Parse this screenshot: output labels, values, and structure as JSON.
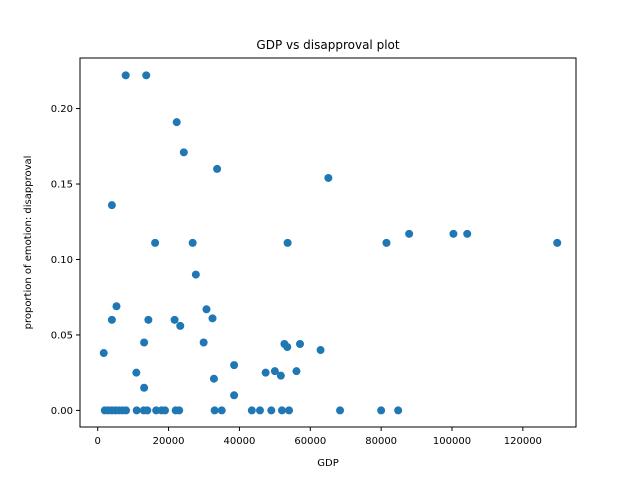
{
  "chart_data": {
    "type": "scatter",
    "title": "GDP vs disapproval plot",
    "xlabel": "GDP",
    "ylabel": "proportion of emotion: disapproval",
    "xlim": [
      -5000,
      135000
    ],
    "ylim": [
      -0.011,
      0.2335
    ],
    "xticks": [
      0,
      20000,
      40000,
      60000,
      80000,
      100000,
      120000
    ],
    "xtick_labels": [
      "0",
      "20000",
      "40000",
      "60000",
      "80000",
      "100000",
      "120000"
    ],
    "yticks": [
      0.0,
      0.05,
      0.1,
      0.15,
      0.2
    ],
    "ytick_labels": [
      "0.00",
      "0.05",
      "0.10",
      "0.15",
      "0.20"
    ],
    "grid": false,
    "marker_color": "#1f77b4",
    "points": [
      {
        "x": 7900,
        "y": 0.222
      },
      {
        "x": 13700,
        "y": 0.222
      },
      {
        "x": 22300,
        "y": 0.191
      },
      {
        "x": 24300,
        "y": 0.171
      },
      {
        "x": 33700,
        "y": 0.16
      },
      {
        "x": 65100,
        "y": 0.154
      },
      {
        "x": 4000,
        "y": 0.136
      },
      {
        "x": 16200,
        "y": 0.111
      },
      {
        "x": 26800,
        "y": 0.111
      },
      {
        "x": 53600,
        "y": 0.111
      },
      {
        "x": 81500,
        "y": 0.111
      },
      {
        "x": 87900,
        "y": 0.117
      },
      {
        "x": 100400,
        "y": 0.117
      },
      {
        "x": 104300,
        "y": 0.117
      },
      {
        "x": 129700,
        "y": 0.111
      },
      {
        "x": 27700,
        "y": 0.09
      },
      {
        "x": 5300,
        "y": 0.069
      },
      {
        "x": 30700,
        "y": 0.067
      },
      {
        "x": 4000,
        "y": 0.06
      },
      {
        "x": 14300,
        "y": 0.06
      },
      {
        "x": 21700,
        "y": 0.06
      },
      {
        "x": 32400,
        "y": 0.061
      },
      {
        "x": 23300,
        "y": 0.056
      },
      {
        "x": 13100,
        "y": 0.045
      },
      {
        "x": 29900,
        "y": 0.045
      },
      {
        "x": 52700,
        "y": 0.044
      },
      {
        "x": 53500,
        "y": 0.042
      },
      {
        "x": 57100,
        "y": 0.044
      },
      {
        "x": 62900,
        "y": 0.04
      },
      {
        "x": 1700,
        "y": 0.038
      },
      {
        "x": 38500,
        "y": 0.03
      },
      {
        "x": 10900,
        "y": 0.025
      },
      {
        "x": 47400,
        "y": 0.025
      },
      {
        "x": 50000,
        "y": 0.026
      },
      {
        "x": 51700,
        "y": 0.023
      },
      {
        "x": 56100,
        "y": 0.026
      },
      {
        "x": 32800,
        "y": 0.021
      },
      {
        "x": 13100,
        "y": 0.015
      },
      {
        "x": 38500,
        "y": 0.01
      },
      {
        "x": 2000,
        "y": 0.0
      },
      {
        "x": 3000,
        "y": 0.0
      },
      {
        "x": 4000,
        "y": 0.0
      },
      {
        "x": 5000,
        "y": 0.0
      },
      {
        "x": 6000,
        "y": 0.0
      },
      {
        "x": 7000,
        "y": 0.0
      },
      {
        "x": 8000,
        "y": 0.0
      },
      {
        "x": 11000,
        "y": 0.0
      },
      {
        "x": 13000,
        "y": 0.0
      },
      {
        "x": 14000,
        "y": 0.0
      },
      {
        "x": 16500,
        "y": 0.0
      },
      {
        "x": 18000,
        "y": 0.0
      },
      {
        "x": 19000,
        "y": 0.0
      },
      {
        "x": 22000,
        "y": 0.0
      },
      {
        "x": 23000,
        "y": 0.0
      },
      {
        "x": 33000,
        "y": 0.0
      },
      {
        "x": 35000,
        "y": 0.0
      },
      {
        "x": 43500,
        "y": 0.0
      },
      {
        "x": 45800,
        "y": 0.0
      },
      {
        "x": 49000,
        "y": 0.0
      },
      {
        "x": 52000,
        "y": 0.0
      },
      {
        "x": 54000,
        "y": 0.0
      },
      {
        "x": 68400,
        "y": 0.0
      },
      {
        "x": 80000,
        "y": 0.0
      },
      {
        "x": 84800,
        "y": 0.0
      }
    ]
  }
}
